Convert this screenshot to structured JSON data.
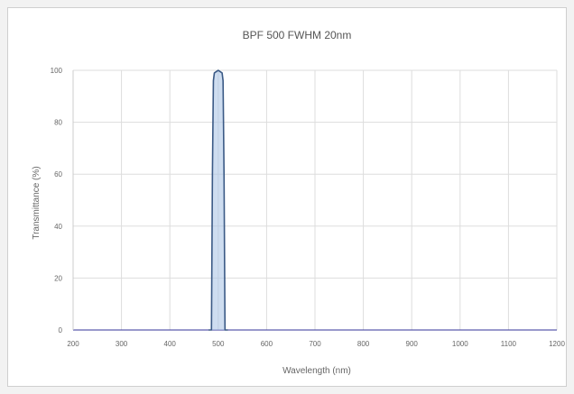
{
  "chart_data": {
    "type": "line",
    "title": "BPF 500 FWHM 20nm",
    "xlabel": "Wavelength (nm)",
    "ylabel": "Transmittance (%)",
    "xlim": [
      200,
      1200
    ],
    "ylim": [
      0,
      100
    ],
    "x_ticks": [
      200,
      300,
      400,
      500,
      600,
      700,
      800,
      900,
      1000,
      1100,
      1200
    ],
    "y_ticks": [
      0,
      20,
      40,
      60,
      80,
      100
    ],
    "grid": true,
    "legend": "none",
    "series": [
      {
        "color": "#3b5a86",
        "fill": "#aec6e6",
        "x": [
          480,
          486,
          488,
          490,
          492,
          496,
          500,
          504,
          508,
          510,
          512,
          514,
          520
        ],
        "y": [
          0,
          0,
          60,
          96,
          99,
          99.5,
          100,
          99.5,
          99,
          96,
          60,
          0,
          0
        ]
      }
    ]
  }
}
